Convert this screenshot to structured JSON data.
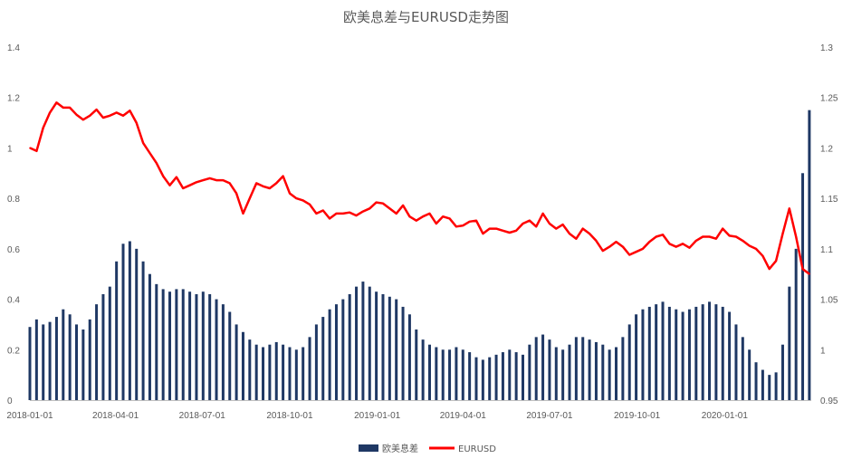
{
  "chart_data": {
    "type": "bar+line",
    "title": "欧美息差与EURUSD走势图",
    "x_axis": {
      "type": "date",
      "range": [
        "2018-01-01",
        "2020-04-01"
      ],
      "tick_labels": [
        "2018-01-01",
        "2018-04-01",
        "2018-07-01",
        "2018-10-01",
        "2019-01-01",
        "2019-04-01",
        "2019-07-01",
        "2019-10-01",
        "2020-01-01"
      ]
    },
    "y_left": {
      "ylim": [
        0,
        1.4
      ],
      "ticks": [
        "0",
        "0.2",
        "0.4",
        "0.6",
        "0.8",
        "1",
        "1.2",
        "1.4"
      ]
    },
    "y_right": {
      "ylim": [
        0.95,
        1.3
      ],
      "ticks": [
        "0.95",
        "1",
        "1.05",
        "1.1",
        "1.15",
        "1.2",
        "1.25",
        "1.3"
      ]
    },
    "grid": false,
    "legend_position": "bottom",
    "series": [
      {
        "name": "欧美息差",
        "kind": "bar",
        "axis": "left",
        "color": "#1f3864",
        "points": [
          [
            "2018-01-01",
            0.29
          ],
          [
            "2018-01-08",
            0.32
          ],
          [
            "2018-01-15",
            0.3
          ],
          [
            "2018-01-22",
            0.31
          ],
          [
            "2018-01-29",
            0.33
          ],
          [
            "2018-02-05",
            0.36
          ],
          [
            "2018-02-12",
            0.34
          ],
          [
            "2018-02-19",
            0.3
          ],
          [
            "2018-02-26",
            0.28
          ],
          [
            "2018-03-05",
            0.32
          ],
          [
            "2018-03-12",
            0.38
          ],
          [
            "2018-03-19",
            0.42
          ],
          [
            "2018-03-26",
            0.45
          ],
          [
            "2018-04-02",
            0.55
          ],
          [
            "2018-04-09",
            0.62
          ],
          [
            "2018-04-16",
            0.63
          ],
          [
            "2018-04-23",
            0.6
          ],
          [
            "2018-04-30",
            0.55
          ],
          [
            "2018-05-07",
            0.5
          ],
          [
            "2018-05-14",
            0.46
          ],
          [
            "2018-05-21",
            0.44
          ],
          [
            "2018-05-28",
            0.43
          ],
          [
            "2018-06-04",
            0.44
          ],
          [
            "2018-06-11",
            0.44
          ],
          [
            "2018-06-18",
            0.43
          ],
          [
            "2018-06-25",
            0.42
          ],
          [
            "2018-07-02",
            0.43
          ],
          [
            "2018-07-09",
            0.42
          ],
          [
            "2018-07-16",
            0.4
          ],
          [
            "2018-07-23",
            0.38
          ],
          [
            "2018-07-30",
            0.35
          ],
          [
            "2018-08-06",
            0.3
          ],
          [
            "2018-08-13",
            0.27
          ],
          [
            "2018-08-20",
            0.24
          ],
          [
            "2018-08-27",
            0.22
          ],
          [
            "2018-09-03",
            0.21
          ],
          [
            "2018-09-10",
            0.22
          ],
          [
            "2018-09-17",
            0.23
          ],
          [
            "2018-09-24",
            0.22
          ],
          [
            "2018-10-01",
            0.21
          ],
          [
            "2018-10-08",
            0.2
          ],
          [
            "2018-10-15",
            0.21
          ],
          [
            "2018-10-22",
            0.25
          ],
          [
            "2018-10-29",
            0.3
          ],
          [
            "2018-11-05",
            0.33
          ],
          [
            "2018-11-12",
            0.36
          ],
          [
            "2018-11-19",
            0.38
          ],
          [
            "2018-11-26",
            0.4
          ],
          [
            "2018-12-03",
            0.42
          ],
          [
            "2018-12-10",
            0.45
          ],
          [
            "2018-12-17",
            0.47
          ],
          [
            "2018-12-24",
            0.45
          ],
          [
            "2018-12-31",
            0.43
          ],
          [
            "2019-01-07",
            0.42
          ],
          [
            "2019-01-14",
            0.41
          ],
          [
            "2019-01-21",
            0.4
          ],
          [
            "2019-01-28",
            0.37
          ],
          [
            "2019-02-04",
            0.34
          ],
          [
            "2019-02-11",
            0.28
          ],
          [
            "2019-02-18",
            0.24
          ],
          [
            "2019-02-25",
            0.22
          ],
          [
            "2019-03-04",
            0.21
          ],
          [
            "2019-03-11",
            0.2
          ],
          [
            "2019-03-18",
            0.2
          ],
          [
            "2019-03-25",
            0.21
          ],
          [
            "2019-04-01",
            0.2
          ],
          [
            "2019-04-08",
            0.19
          ],
          [
            "2019-04-15",
            0.17
          ],
          [
            "2019-04-22",
            0.16
          ],
          [
            "2019-04-29",
            0.17
          ],
          [
            "2019-05-06",
            0.18
          ],
          [
            "2019-05-13",
            0.19
          ],
          [
            "2019-05-20",
            0.2
          ],
          [
            "2019-05-27",
            0.19
          ],
          [
            "2019-06-03",
            0.18
          ],
          [
            "2019-06-10",
            0.22
          ],
          [
            "2019-06-17",
            0.25
          ],
          [
            "2019-06-24",
            0.26
          ],
          [
            "2019-07-01",
            0.24
          ],
          [
            "2019-07-08",
            0.21
          ],
          [
            "2019-07-15",
            0.2
          ],
          [
            "2019-07-22",
            0.22
          ],
          [
            "2019-07-29",
            0.25
          ],
          [
            "2019-08-05",
            0.25
          ],
          [
            "2019-08-12",
            0.24
          ],
          [
            "2019-08-19",
            0.23
          ],
          [
            "2019-08-26",
            0.22
          ],
          [
            "2019-09-02",
            0.2
          ],
          [
            "2019-09-09",
            0.21
          ],
          [
            "2019-09-16",
            0.25
          ],
          [
            "2019-09-23",
            0.3
          ],
          [
            "2019-09-30",
            0.34
          ],
          [
            "2019-10-07",
            0.36
          ],
          [
            "2019-10-14",
            0.37
          ],
          [
            "2019-10-21",
            0.38
          ],
          [
            "2019-10-28",
            0.39
          ],
          [
            "2019-11-04",
            0.37
          ],
          [
            "2019-11-11",
            0.36
          ],
          [
            "2019-11-18",
            0.35
          ],
          [
            "2019-11-25",
            0.36
          ],
          [
            "2019-12-02",
            0.37
          ],
          [
            "2019-12-09",
            0.38
          ],
          [
            "2019-12-16",
            0.39
          ],
          [
            "2019-12-23",
            0.38
          ],
          [
            "2019-12-30",
            0.37
          ],
          [
            "2020-01-06",
            0.35
          ],
          [
            "2020-01-13",
            0.3
          ],
          [
            "2020-01-20",
            0.25
          ],
          [
            "2020-01-27",
            0.2
          ],
          [
            "2020-02-03",
            0.15
          ],
          [
            "2020-02-10",
            0.12
          ],
          [
            "2020-02-17",
            0.1
          ],
          [
            "2020-02-24",
            0.11
          ],
          [
            "2020-03-02",
            0.22
          ],
          [
            "2020-03-09",
            0.45
          ],
          [
            "2020-03-16",
            0.6
          ],
          [
            "2020-03-23",
            0.9
          ],
          [
            "2020-03-30",
            1.15
          ]
        ]
      },
      {
        "name": "EURUSD",
        "kind": "line",
        "axis": "right",
        "color": "#ff0000",
        "points": [
          [
            "2018-01-01",
            1.2
          ],
          [
            "2018-01-08",
            1.197
          ],
          [
            "2018-01-15",
            1.22
          ],
          [
            "2018-01-22",
            1.235
          ],
          [
            "2018-01-29",
            1.245
          ],
          [
            "2018-02-05",
            1.24
          ],
          [
            "2018-02-12",
            1.24
          ],
          [
            "2018-02-19",
            1.233
          ],
          [
            "2018-02-26",
            1.228
          ],
          [
            "2018-03-05",
            1.232
          ],
          [
            "2018-03-12",
            1.238
          ],
          [
            "2018-03-19",
            1.23
          ],
          [
            "2018-03-26",
            1.232
          ],
          [
            "2018-04-02",
            1.235
          ],
          [
            "2018-04-09",
            1.232
          ],
          [
            "2018-04-16",
            1.237
          ],
          [
            "2018-04-23",
            1.225
          ],
          [
            "2018-04-30",
            1.205
          ],
          [
            "2018-05-07",
            1.195
          ],
          [
            "2018-05-14",
            1.185
          ],
          [
            "2018-05-21",
            1.172
          ],
          [
            "2018-05-28",
            1.163
          ],
          [
            "2018-06-04",
            1.171
          ],
          [
            "2018-06-11",
            1.16
          ],
          [
            "2018-06-18",
            1.163
          ],
          [
            "2018-06-25",
            1.166
          ],
          [
            "2018-07-02",
            1.168
          ],
          [
            "2018-07-09",
            1.17
          ],
          [
            "2018-07-16",
            1.168
          ],
          [
            "2018-07-23",
            1.168
          ],
          [
            "2018-07-30",
            1.165
          ],
          [
            "2018-08-06",
            1.155
          ],
          [
            "2018-08-13",
            1.135
          ],
          [
            "2018-08-20",
            1.15
          ],
          [
            "2018-08-27",
            1.165
          ],
          [
            "2018-09-03",
            1.162
          ],
          [
            "2018-09-10",
            1.16
          ],
          [
            "2018-09-17",
            1.165
          ],
          [
            "2018-09-24",
            1.172
          ],
          [
            "2018-10-01",
            1.155
          ],
          [
            "2018-10-08",
            1.15
          ],
          [
            "2018-10-15",
            1.148
          ],
          [
            "2018-10-22",
            1.144
          ],
          [
            "2018-10-29",
            1.135
          ],
          [
            "2018-11-05",
            1.138
          ],
          [
            "2018-11-12",
            1.13
          ],
          [
            "2018-11-19",
            1.135
          ],
          [
            "2018-11-26",
            1.135
          ],
          [
            "2018-12-03",
            1.136
          ],
          [
            "2018-12-10",
            1.133
          ],
          [
            "2018-12-17",
            1.137
          ],
          [
            "2018-12-24",
            1.14
          ],
          [
            "2018-12-31",
            1.146
          ],
          [
            "2019-01-07",
            1.145
          ],
          [
            "2019-01-14",
            1.14
          ],
          [
            "2019-01-21",
            1.135
          ],
          [
            "2019-01-28",
            1.143
          ],
          [
            "2019-02-04",
            1.132
          ],
          [
            "2019-02-11",
            1.128
          ],
          [
            "2019-02-18",
            1.132
          ],
          [
            "2019-02-25",
            1.135
          ],
          [
            "2019-03-04",
            1.125
          ],
          [
            "2019-03-11",
            1.132
          ],
          [
            "2019-03-18",
            1.13
          ],
          [
            "2019-03-25",
            1.122
          ],
          [
            "2019-04-01",
            1.123
          ],
          [
            "2019-04-08",
            1.127
          ],
          [
            "2019-04-15",
            1.128
          ],
          [
            "2019-04-22",
            1.115
          ],
          [
            "2019-04-29",
            1.12
          ],
          [
            "2019-05-06",
            1.12
          ],
          [
            "2019-05-13",
            1.118
          ],
          [
            "2019-05-20",
            1.116
          ],
          [
            "2019-05-27",
            1.118
          ],
          [
            "2019-06-03",
            1.125
          ],
          [
            "2019-06-10",
            1.128
          ],
          [
            "2019-06-17",
            1.122
          ],
          [
            "2019-06-24",
            1.135
          ],
          [
            "2019-07-01",
            1.125
          ],
          [
            "2019-07-08",
            1.12
          ],
          [
            "2019-07-15",
            1.124
          ],
          [
            "2019-07-22",
            1.115
          ],
          [
            "2019-07-29",
            1.11
          ],
          [
            "2019-08-05",
            1.12
          ],
          [
            "2019-08-12",
            1.115
          ],
          [
            "2019-08-19",
            1.108
          ],
          [
            "2019-08-26",
            1.098
          ],
          [
            "2019-09-02",
            1.102
          ],
          [
            "2019-09-09",
            1.107
          ],
          [
            "2019-09-16",
            1.102
          ],
          [
            "2019-09-23",
            1.094
          ],
          [
            "2019-09-30",
            1.097
          ],
          [
            "2019-10-07",
            1.1
          ],
          [
            "2019-10-14",
            1.107
          ],
          [
            "2019-10-21",
            1.112
          ],
          [
            "2019-10-28",
            1.114
          ],
          [
            "2019-11-04",
            1.105
          ],
          [
            "2019-11-11",
            1.102
          ],
          [
            "2019-11-18",
            1.105
          ],
          [
            "2019-11-25",
            1.101
          ],
          [
            "2019-12-02",
            1.108
          ],
          [
            "2019-12-09",
            1.112
          ],
          [
            "2019-12-16",
            1.112
          ],
          [
            "2019-12-23",
            1.11
          ],
          [
            "2019-12-30",
            1.12
          ],
          [
            "2020-01-06",
            1.113
          ],
          [
            "2020-01-13",
            1.112
          ],
          [
            "2020-01-20",
            1.108
          ],
          [
            "2020-01-27",
            1.103
          ],
          [
            "2020-02-03",
            1.1
          ],
          [
            "2020-02-10",
            1.093
          ],
          [
            "2020-02-17",
            1.08
          ],
          [
            "2020-02-24",
            1.088
          ],
          [
            "2020-03-02",
            1.115
          ],
          [
            "2020-03-09",
            1.14
          ],
          [
            "2020-03-16",
            1.112
          ],
          [
            "2020-03-23",
            1.08
          ],
          [
            "2020-03-30",
            1.075
          ]
        ]
      }
    ]
  }
}
